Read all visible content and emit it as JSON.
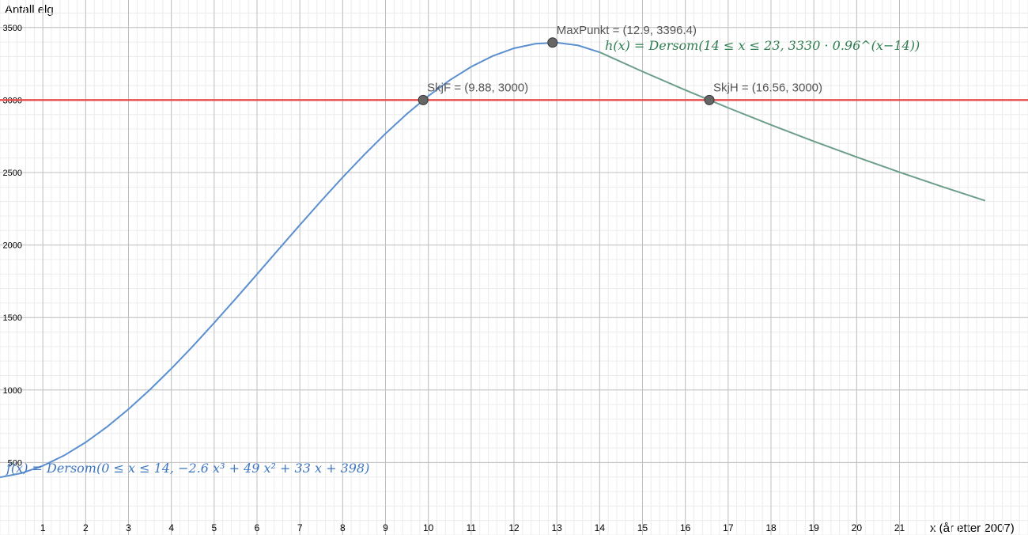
{
  "chart_data": {
    "type": "line",
    "y_label": "Antall elg",
    "x_label": "x (år etter 2007)",
    "xlim": [
      0,
      24
    ],
    "ylim": [
      0,
      3690
    ],
    "xticks": [
      1,
      2,
      3,
      4,
      5,
      6,
      7,
      8,
      9,
      10,
      11,
      12,
      13,
      14,
      15,
      16,
      17,
      18,
      19,
      20,
      21
    ],
    "yticks": [
      500,
      1000,
      1500,
      2000,
      2500,
      3000,
      3500
    ],
    "grid": true,
    "series": [
      {
        "formula": "f(x) = Dersom(0 ≤ x ≤ 14, −2.6 x³ + 49 x² + 33 x + 398)",
        "color": "#5b8fcf",
        "text_color": "#3e77c0",
        "x": [
          0,
          0.5,
          1,
          1.5,
          2,
          2.5,
          3,
          3.5,
          4,
          4.5,
          5,
          5.5,
          6,
          6.5,
          7,
          7.5,
          8,
          8.5,
          9,
          9.5,
          10,
          10.5,
          11,
          11.5,
          12,
          12.5,
          13,
          13.5,
          14
        ],
        "values": [
          398,
          426.4,
          477.4,
          549.0,
          639.2,
          746.1,
          867.8,
          1002.3,
          1147.6,
          1301.8,
          1463,
          1629.2,
          1798.4,
          1968.7,
          2138.2,
          2304.9,
          2466.8,
          2622.0,
          2768.6,
          2904.6,
          3028,
          3136.9,
          3229.4,
          3303.5,
          3357.2,
          3388.6,
          3395.8,
          3376.8,
          3329.6
        ]
      },
      {
        "formula": "h(x) = Dersom(14 ≤ x ≤ 23, 3330 · 0.96^(x−14))",
        "color": "#6d9e8a",
        "text_color": "#2e7d4f",
        "x": [
          14,
          15,
          16,
          17,
          18,
          19,
          20,
          21,
          22,
          23
        ],
        "values": [
          3330,
          3196.8,
          3068.9,
          2946.2,
          2828.3,
          2715.2,
          2606.6,
          2502.3,
          2402.2,
          2306.1
        ]
      }
    ],
    "lines": [
      {
        "y": 3000,
        "color": "#e8504f"
      }
    ],
    "points": [
      {
        "label": "MaxPunkt = (12.9, 3396.4)",
        "x": 12.9,
        "y": 3396.4
      },
      {
        "label": "SkjF = (9.88, 3000)",
        "x": 9.88,
        "y": 3000
      },
      {
        "label": "SkjH = (16.56, 3000)",
        "x": 16.56,
        "y": 3000
      }
    ]
  }
}
